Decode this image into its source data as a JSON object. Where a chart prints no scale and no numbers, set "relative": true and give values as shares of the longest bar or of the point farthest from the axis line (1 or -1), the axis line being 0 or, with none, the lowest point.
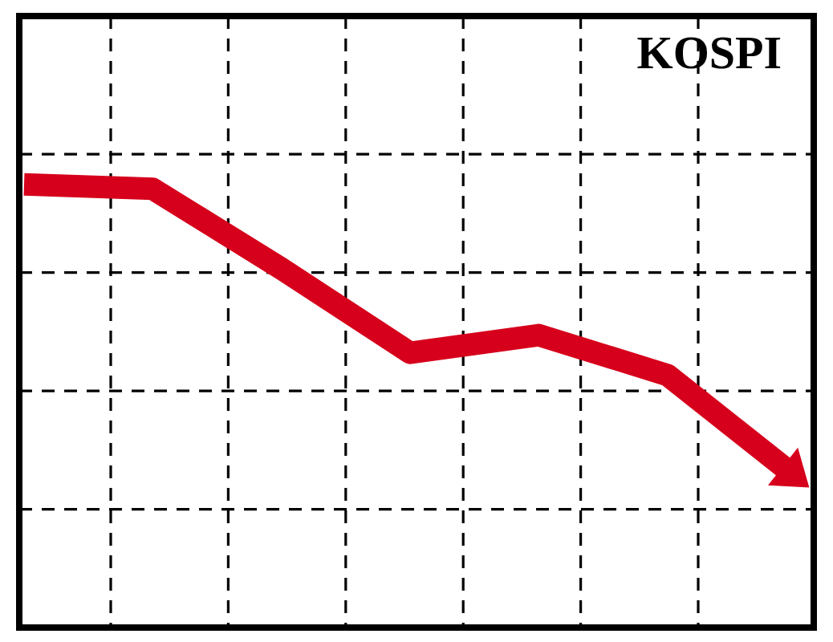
{
  "chart_data": {
    "type": "line",
    "title": "KOSPI",
    "relative": true,
    "categories": [
      null,
      null,
      null,
      null,
      null,
      null,
      null
    ],
    "series": [
      {
        "color": "#d6001c",
        "values": [
          1,
          0.99,
          0.81,
          0.62,
          0.66,
          0.57,
          0.34
        ]
      }
    ],
    "grid": true,
    "marker": "none",
    "line_style": "solid"
  }
}
